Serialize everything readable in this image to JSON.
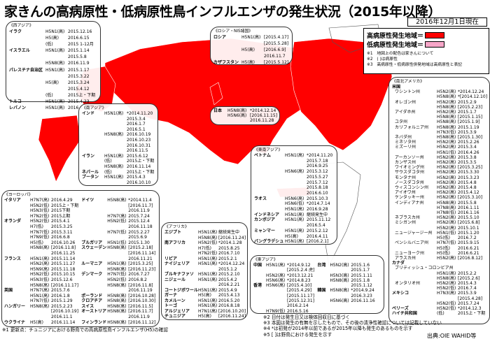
{
  "title": "家きんの高病原性・低病原性鳥インフルエンザの発生状況（2015年以降）",
  "date": "2016年12月1日現在",
  "colors": {
    "high": "#ff0000",
    "low": "#f7a6c8"
  },
  "legend": {
    "high": "高病原性発生地域＝",
    "low": "低病原性発生地域＝",
    "notes": [
      "※1　地図上の配色は家きんについて",
      "※2　( )は病原性",
      "※3　高病原性・低病原性併発地域は高病原性と表記"
    ]
  },
  "regions": {
    "west_asia": {
      "title": "《西アジア》",
      "rows": [
        [
          "イラク",
          "H5N1(高)",
          "2015.12.16"
        ],
        [
          "",
          "H5(高)",
          "2016.6.15"
        ],
        [
          "",
          "(低)",
          "2015 1-12月"
        ],
        [
          "イスラエル",
          "H5N1(高)",
          "2015.1.14"
        ],
        [
          "",
          "",
          "2015.5.8"
        ],
        [
          "",
          "H5N8(高)",
          "2016.11.9"
        ],
        [
          "パレスチナ自治区",
          "H5N1(高)",
          "2015.1.17"
        ],
        [
          "",
          "",
          "2015.3.22"
        ],
        [
          "",
          "H5(高)",
          "2015.3.24"
        ],
        [
          "",
          "",
          "2015.4.12"
        ],
        [
          "",
          "(低)",
          "2015上・下期"
        ],
        [
          "トルコ",
          "H5N1(高)",
          "2015.4.23"
        ],
        [
          "レバノン",
          "H5N1(高)",
          "2016.4.20"
        ]
      ]
    },
    "russia": {
      "title": "《ロシア・NIS諸国》",
      "rows": [
        [
          "ロシア",
          "H5N1(高)",
          "[2015.4.17]"
        ],
        [
          "",
          "",
          "[2015.5.28]"
        ],
        [
          "",
          "H5(高)",
          "[2016.6.9]"
        ],
        [
          "",
          "",
          "2016.11.7"
        ],
        [
          "カザフスタン",
          "H5(高)",
          "[2015.5.12]"
        ]
      ]
    },
    "south_asia": {
      "title": "《南アジア》",
      "rows": [
        [
          "インド",
          "H5N1(高)",
          "*2014.11.20"
        ],
        [
          "",
          "",
          "2015.3.4"
        ],
        [
          "",
          "",
          "2016.1.7"
        ],
        [
          "",
          "",
          "2016.5.1"
        ],
        [
          "",
          "H5N8(高)",
          "2016.10.19"
        ],
        [
          "",
          "",
          "2016.10.23"
        ],
        [
          "",
          "",
          "2016.10.31"
        ],
        [
          "",
          "",
          "2016.11.5"
        ],
        [
          "イラン",
          "H5N1(高)",
          "2015.6.12"
        ],
        [
          "",
          "(低)",
          "2015上・下期"
        ],
        [
          "",
          "H5N8(高)",
          "2016.11.14"
        ],
        [
          "ネパール",
          "(低)",
          "2015上・下期"
        ],
        [
          "ブータン",
          "H5N1(高)",
          "2015.4.3"
        ],
        [
          "",
          "",
          "2016.10.10"
        ]
      ]
    },
    "japan": {
      "rows": [
        [
          "日本",
          "H5N8(高)",
          "*2014.12.14"
        ],
        [
          "",
          "H5N6(高)",
          "[2016.11.15]"
        ],
        [
          "",
          "",
          "2016.11.28"
        ]
      ]
    },
    "se_asia": {
      "title": "《東南アジア》",
      "rows": [
        [
          "ベトナム",
          "H5N1(高)",
          "*2014.11.20"
        ],
        [
          "",
          "",
          "2015.7.18"
        ],
        [
          "",
          "",
          "2016.9.25"
        ],
        [
          "",
          "H5N6(高)",
          "2015.3.12"
        ],
        [
          "",
          "",
          "2015.5.27"
        ],
        [
          "",
          "",
          "2015.7.12"
        ],
        [
          "",
          "",
          "2015.8.18"
        ],
        [
          "",
          "",
          "2016.6.10"
        ],
        [
          "ラオス",
          "H5N6(高)",
          "2015.10.3"
        ],
        [
          "",
          "H5N6(低)",
          "*2014.7.14"
        ],
        [
          "",
          "H5N1(高)",
          "2016.9.28"
        ],
        [
          "インドネシア",
          "H5N1(高)",
          "継続発生中"
        ],
        [
          "カンボジア",
          "H5N1(高)",
          "2015.11.12"
        ],
        [
          "",
          "",
          "2016.5.4"
        ],
        [
          "ミャンマー",
          "H5N1(高)",
          "2015.2.12"
        ],
        [
          "",
          "H5(高)",
          "2016.4.11"
        ],
        [
          "バングラデシュ",
          "H5N1(高)",
          "[2016.2.1]"
        ]
      ]
    },
    "east_asia": {
      "title": "《東アジア》",
      "left": [
        [
          "中国",
          "H5N1(高)",
          "*2014.9.12"
        ],
        [
          "",
          "",
          "[2015.2.4 虎]"
        ],
        [
          "",
          "H5N2(高)",
          "*2013.12.21"
        ],
        [
          "",
          "H5N6(高)",
          "*2014.8.23"
        ],
        [
          "香港",
          "H5N6(高)",
          "[2015.4.10]"
        ],
        [
          "",
          "",
          "[2015.4.29]"
        ],
        [
          "",
          "",
          "[2015.11.17]"
        ],
        [
          "",
          "",
          "[2015.12.31]"
        ],
        [
          "",
          "",
          "2016.2.14"
        ],
        [
          "",
          "H7N9(低)",
          "2016.5.16"
        ]
      ],
      "right": [
        [
          "台湾",
          "H5N2(高)",
          "2015.1.6"
        ],
        [
          "",
          "",
          "2015.1.7"
        ],
        [
          "",
          "H5N3(高)",
          "2015.1.11"
        ],
        [
          "",
          "H5N8(高)",
          "2015.1.8"
        ],
        [
          "",
          "",
          "2015.1.12"
        ],
        [
          "韓国",
          "H5N8(高)",
          "*2014.9.24"
        ],
        [
          "",
          "",
          "2016.3.23"
        ],
        [
          "",
          "H5N6(高)",
          "2016.11.16"
        ]
      ]
    },
    "africa": {
      "title": "《アフリカ》",
      "rows": [
        [
          "エジプト",
          "H5N1(高)",
          "継続発生中"
        ],
        [
          "",
          "H5N8(高)",
          "[2016.11.24]"
        ],
        [
          "南アフリカ",
          "H5N2(低)",
          "*2014.1.28"
        ],
        [
          "",
          "H7(低)",
          "2015.8.25"
        ],
        [
          "",
          "H7N2(低)",
          "2016.7.10"
        ],
        [
          "リビア",
          "H5N1(高)",
          "2015.2.1"
        ],
        [
          "ナイジェリア",
          "H5N1(高)",
          "*2014.12.24"
        ],
        [
          "",
          "",
          "2015.1.2"
        ],
        [
          "ブルキナファソ",
          "H5N1(高)",
          "2015.2.10"
        ],
        [
          "ニジェール",
          "H5N1(高)",
          "2015.4.2"
        ],
        [
          "",
          "",
          "2016.2.21"
        ],
        [
          "コートジボワール",
          "H5N1(高)",
          "2015.4.9"
        ],
        [
          "ガーナ",
          "H5(高)",
          "2015.4.13"
        ],
        [
          "カメルーン",
          "H5N1(高)",
          "2016.5.20"
        ],
        [
          "トーゴ",
          "H5N1(高)",
          "2016.8.18"
        ],
        [
          "アルジェリア",
          "H7N1(高)",
          "[2016.10.20]"
        ],
        [
          "チュニジア",
          "H5(高)",
          "[2016.11.24]"
        ]
      ]
    },
    "europe": {
      "title": "《ヨーロッパ》",
      "left": [
        [
          "イタリア",
          "H7N7(高)",
          "2016.4.29"
        ],
        [
          "",
          "H5N2(低)",
          "2015上・下期"
        ],
        [
          "",
          "H5N3(低)",
          "2015下期"
        ],
        [
          "",
          "H7N2(低)",
          "2015上期"
        ],
        [
          "オランダ",
          "H5N2(低)",
          "2015.4.1"
        ],
        [
          "",
          "H7(低)",
          "2015.3.25"
        ],
        [
          "",
          "H7N7(低)",
          "2015.3.11"
        ],
        [
          "",
          "H7N9(低)",
          "2016.6.8"
        ],
        [
          "",
          "H5(低)",
          "2016.10.26"
        ],
        [
          "",
          "H5N8(高)",
          "[2016.11.8]"
        ],
        [
          "",
          "",
          "2016.11.25"
        ],
        [
          "フランス",
          "H5N1(高)",
          "2015.11.14"
        ],
        [
          "",
          "H5N2(高)",
          "2015.11.27"
        ],
        [
          "",
          "H5N9(高)",
          "2015.11.18"
        ],
        [
          "",
          "H5N2(低)",
          "2015.10.15"
        ],
        [
          "",
          "H5N3(低)",
          "2015.12.6"
        ],
        [
          "",
          "H5N8(高)",
          "[2016.11.17]"
        ],
        [
          "英国",
          "H7N7(高)",
          "2015.7.6"
        ],
        [
          "",
          "H5N1(高)",
          "2016.1.8"
        ],
        [
          "",
          "H7N7(低)",
          "2015.1.29"
        ],
        [
          "ハンガリー",
          "H5N8(高)",
          "2015.2.23"
        ],
        [
          "",
          "",
          "[2016.10.19]"
        ],
        [
          "",
          "",
          "2016.11.1"
        ],
        [
          "ウクライナ",
          "H5(高)",
          "2016.11.14"
        ]
      ],
      "right": [
        [
          "ドイツ",
          "H5N8(高)",
          "*2014.11.4"
        ],
        [
          "",
          "",
          "[2016.11.7]"
        ],
        [
          "",
          "",
          "2016.11.9"
        ],
        [
          "",
          "H7N7(高)",
          "2015.7.24"
        ],
        [
          "",
          "H5N2(低)",
          "2015.12.4"
        ],
        [
          "",
          "",
          "2016.11.18"
        ],
        [
          "",
          "H7N7(低)",
          "2015.2.27"
        ],
        [
          "",
          "",
          "2015.6.9"
        ],
        [
          "ブルガリア",
          "H5N1(低)",
          "2015.1.30"
        ],
        [
          "スウェーデン",
          "H5N8(高)",
          "[2015.2.18]"
        ],
        [
          "",
          "",
          "[2016.11.14]"
        ],
        [
          "",
          "",
          "2016.11.21"
        ],
        [
          "ルーマニア",
          "H5N1(高)",
          "[2015.3.25]"
        ],
        [
          "",
          "H5N8(高)",
          "[2016.11.23]"
        ],
        [
          "デンマーク",
          "H7N7(低)",
          "2016.7.27"
        ],
        [
          "",
          "H5N2(低)",
          "2016.8.2"
        ],
        [
          "",
          "H5N8(高)",
          "[2016.11.8]"
        ],
        [
          "",
          "",
          "2016.11.19"
        ],
        [
          "ポーランド",
          "H5N8(高)",
          "[2016.10.28]"
        ],
        [
          "クロアチア",
          "H5N8(高)",
          "[2016.10.30]"
        ],
        [
          "スイス",
          "H5N8(高)",
          "[2016.11.5]"
        ],
        [
          "オーストリア",
          "H5N8(高)",
          "[2016.11.7]"
        ],
        [
          "",
          "",
          "2016.11.9"
        ],
        [
          "フィンランド",
          "H5N8(高)",
          "[2016.11.12]"
        ]
      ]
    },
    "americas": {
      "title": "《南北アメリカ》",
      "rows": [
        [
          "米国",
          "",
          ""
        ],
        [
          "ワシントン州",
          "H5N2(高)",
          "*2014.12.24",
          1
        ],
        [
          "",
          "H5N8(高)",
          "*[2014.12.10]",
          1
        ],
        [
          "オレゴン州",
          "H5N2(高)",
          "2015.2.9",
          1
        ],
        [
          "",
          "H5N8(高)",
          "[2015.2.23]",
          1
        ],
        [
          "アイダホ州",
          "H5N2(高)",
          "2015.1.7",
          1
        ],
        [
          "",
          "H5N8(高)",
          "[2015.1.15]",
          1
        ],
        [
          "ユタ州",
          "H5N8(高)",
          "[2015.1.9]",
          1
        ],
        [
          "カリフォルニア州",
          "H5N8(高)",
          "2015.1.19",
          1
        ],
        [
          "",
          "H7N3(低)",
          "2015.3.9",
          1
        ],
        [
          "ネバダ州",
          "H5N8(高)",
          "[2015.1.30]",
          1
        ],
        [
          "ミネソタ州",
          "H5N2(高)",
          "2015.2.26",
          1
        ],
        [
          "ミズーリ州",
          "H5N2(高)",
          "2015.3.4",
          1
        ],
        [
          "",
          "H5N1(低)",
          "2016.4.26",
          1
        ],
        [
          "アーカンソー州",
          "H5N2(高)",
          "2015.3.8",
          1
        ],
        [
          "カンザス州",
          "H5N2(高)",
          "2015.3.5",
          1
        ],
        [
          "ワイオミング州",
          "H5N2(高)",
          "[2015.3.25]",
          1
        ],
        [
          "サウスダコタ州",
          "H5N2(高)",
          "2015.3.30",
          1
        ],
        [
          "モンタナ州",
          "H5N2(高)",
          "2015.3.23",
          1
        ],
        [
          "ノースダコタ州",
          "H5N2(高)",
          "2015.4.8",
          1
        ],
        [
          "ウィスコンシン州",
          "H5N2(高)",
          "2015.4.8",
          1
        ],
        [
          "アイオワ州",
          "H5N2(高)",
          "2015.4.12",
          1
        ],
        [
          "ケンタッキー州",
          "H5N2(高)",
          "[2015.3.10]",
          1
        ],
        [
          "インディアナ州",
          "H5N8(高)",
          "2015.5.8",
          1
        ],
        [
          "",
          "H7N8(高)",
          "2016.1.11",
          1
        ],
        [
          "",
          "H7N8(低)",
          "2016.1.16",
          1
        ],
        [
          "ネブラスカ州",
          "H5N2(高)",
          "2015.5.10",
          1
        ],
        [
          "ミシガン州",
          "H5N2(高)",
          "[2015.6.8]",
          1
        ],
        [
          "",
          "H5N2(高)",
          "2015.10.1",
          1
        ],
        [
          "ニュージャージー州",
          "H5N1(低)",
          "2015.1.20",
          1
        ],
        [
          "",
          "H5(低)",
          "2016.7.2",
          1
        ],
        [
          "ペンシルバニア州",
          "H7N7(低)",
          "2015.9.15",
          1
        ],
        [
          "",
          "H5(低)",
          "2016.6.21",
          1
        ],
        [
          "ニューヨーク州",
          "H5(低)",
          "2016.6.21",
          1
        ],
        [
          "アラスカ州",
          "H5N2(高)",
          "[2016.8.12]",
          1
        ],
        [
          "カナダ",
          "",
          ""
        ],
        [
          "ブリティッシュ・コロンビア州",
          "H5N1(高)",
          "2015.2.2",
          1
        ],
        [
          "",
          "H5N8(高)",
          "[2015.2.6]",
          1
        ],
        [
          "オンタリオ州",
          "H5N2(高)",
          "2015.4.3",
          1
        ],
        [
          "",
          "H5N2(低)",
          "2016.7.4",
          1
        ],
        [
          "メキシコ",
          "H7N3(高)",
          "2015.3.9"
        ],
        [
          "",
          "",
          "[2015.4.28]"
        ],
        [
          "",
          "H5N2(低)",
          "2015.7.24"
        ],
        [
          "ベリーズ",
          "H5N2(低)",
          "*2014.12.3"
        ],
        [
          "ハイチ共和国",
          "(低)",
          "2015上・下期"
        ]
      ]
    }
  },
  "footnotes": {
    "n1": "※1 更新点：チュニジアにおける野鳥での高病原性鳥インフルエンザ(H5)の確認",
    "n2": "※2 日付は発生日又は検体回収日に基づく",
    "n3": "※3 本図は発生の有無を示したもので、その後の清浄性確認については記載していない",
    "n4": "※4 *は初発が2014年以前であるが2015年以降も発生のあるものを示す",
    "n5": "※5 [ ]は野鳥における発生を示す",
    "source": "出典:OIE WAHID等"
  }
}
